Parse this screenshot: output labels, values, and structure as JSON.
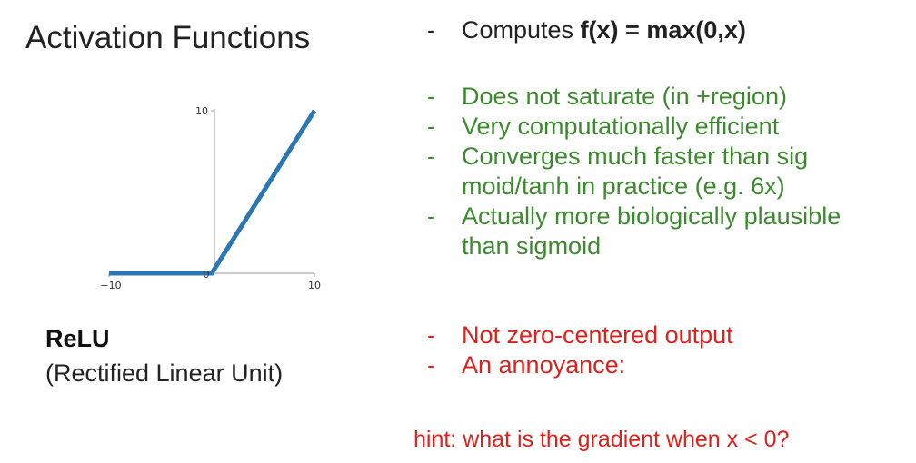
{
  "title": "Activation Functions",
  "name": "ReLU",
  "description": "(Rectified Linear Unit)",
  "formula": {
    "prefix": "Computes ",
    "bold": "f(x) = max(0,x)"
  },
  "pros": [
    {
      "lines": [
        "Does not saturate (in +region)"
      ]
    },
    {
      "lines": [
        "Very computationally efficient"
      ]
    },
    {
      "lines": [
        "Converges much faster than  sig",
        "moid/tanh in practice (e.g. 6x)"
      ]
    },
    {
      "lines": [
        "Actually more biologically plausible",
        "than sigmoid"
      ]
    }
  ],
  "cons": [
    {
      "lines": [
        "Not zero-centered output"
      ]
    },
    {
      "lines": [
        "An annoyance:"
      ]
    }
  ],
  "hint": "hint: what is the gradient when x < 0?",
  "colors": {
    "pro": "#3c8a2e",
    "con": "#e0201b",
    "curve": "#2a77b4"
  },
  "chart_data": {
    "type": "line",
    "x": [
      -10,
      0,
      10
    ],
    "y": [
      0,
      0,
      10
    ],
    "xlim": [
      -10,
      10
    ],
    "ylim": [
      0,
      10
    ],
    "xticks": [
      "−10",
      "0",
      "10"
    ],
    "yticks": [
      "10"
    ],
    "grid": false
  }
}
